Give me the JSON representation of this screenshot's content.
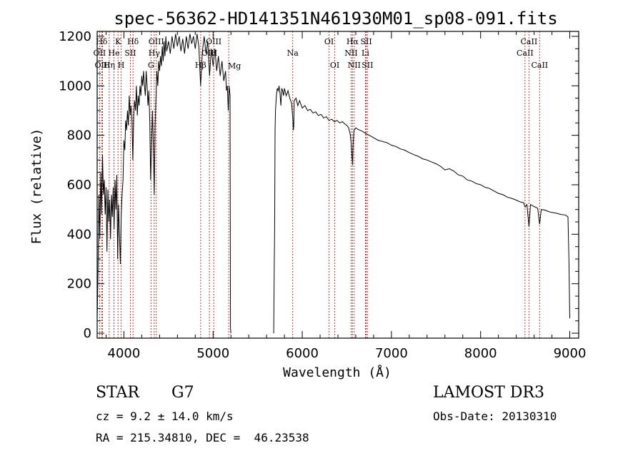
{
  "chart_data": {
    "type": "line",
    "title": "spec-56362-HD141351N461930M01_sp08-091.fits",
    "xlabel": "Wavelength (Å)",
    "ylabel": "Flux (relative)",
    "xlim": [
      3700,
      9100
    ],
    "ylim": [
      -20,
      1220
    ],
    "xticks": [
      4000,
      5000,
      6000,
      7000,
      8000,
      9000
    ],
    "yticks": [
      0,
      200,
      400,
      600,
      800,
      1000,
      1200
    ],
    "series": [
      {
        "name": "spectrum",
        "segments": [
          [
            [
              3700,
              60
            ],
            [
              3710,
              250
            ],
            [
              3720,
              560
            ],
            [
              3730,
              380
            ],
            [
              3740,
              650
            ],
            [
              3750,
              480
            ],
            [
              3760,
              720
            ],
            [
              3770,
              560
            ],
            [
              3780,
              620
            ],
            [
              3790,
              480
            ],
            [
              3800,
              590
            ],
            [
              3810,
              330
            ],
            [
              3820,
              580
            ],
            [
              3830,
              450
            ],
            [
              3840,
              540
            ],
            [
              3850,
              380
            ],
            [
              3860,
              560
            ],
            [
              3870,
              470
            ],
            [
              3880,
              590
            ],
            [
              3890,
              420
            ],
            [
              3900,
              620
            ],
            [
              3910,
              500
            ],
            [
              3920,
              640
            ],
            [
              3930,
              300
            ],
            [
              3940,
              520
            ],
            [
              3950,
              400
            ],
            [
              3960,
              280
            ],
            [
              3970,
              480
            ],
            [
              3980,
              560
            ],
            [
              3990,
              620
            ],
            [
              4000,
              780
            ],
            [
              4010,
              740
            ],
            [
              4020,
              860
            ],
            [
              4030,
              820
            ],
            [
              4040,
              900
            ],
            [
              4050,
              840
            ],
            [
              4060,
              960
            ],
            [
              4070,
              880
            ],
            [
              4080,
              920
            ],
            [
              4090,
              860
            ],
            [
              4100,
              700
            ],
            [
              4110,
              880
            ],
            [
              4120,
              940
            ],
            [
              4130,
              900
            ],
            [
              4140,
              1000
            ],
            [
              4150,
              880
            ],
            [
              4160,
              960
            ],
            [
              4170,
              920
            ],
            [
              4180,
              1000
            ],
            [
              4190,
              960
            ],
            [
              4200,
              1040
            ],
            [
              4210,
              1000
            ],
            [
              4220,
              1060
            ],
            [
              4230,
              1000
            ],
            [
              4240,
              960
            ],
            [
              4250,
              1060
            ],
            [
              4260,
              1000
            ],
            [
              4270,
              920
            ],
            [
              4280,
              980
            ],
            [
              4290,
              860
            ],
            [
              4300,
              620
            ],
            [
              4310,
              760
            ],
            [
              4320,
              900
            ],
            [
              4330,
              760
            ],
            [
              4340,
              560
            ],
            [
              4350,
              840
            ],
            [
              4360,
              960
            ],
            [
              4370,
              1060
            ],
            [
              4380,
              1000
            ],
            [
              4390,
              1100
            ],
            [
              4400,
              1060
            ],
            [
              4410,
              1120
            ],
            [
              4420,
              1080
            ],
            [
              4430,
              1160
            ],
            [
              4440,
              1100
            ],
            [
              4450,
              1180
            ],
            [
              4460,
              1120
            ],
            [
              4470,
              1200
            ],
            [
              4480,
              1140
            ],
            [
              4500,
              1180
            ],
            [
              4520,
              1130
            ],
            [
              4540,
              1200
            ],
            [
              4560,
              1150
            ],
            [
              4580,
              1210
            ],
            [
              4600,
              1160
            ],
            [
              4620,
              1200
            ],
            [
              4640,
              1140
            ],
            [
              4660,
              1190
            ],
            [
              4680,
              1130
            ],
            [
              4700,
              1200
            ],
            [
              4720,
              1150
            ],
            [
              4740,
              1210
            ],
            [
              4760,
              1170
            ],
            [
              4780,
              1200
            ],
            [
              4800,
              1150
            ],
            [
              4820,
              1210
            ],
            [
              4840,
              1160
            ],
            [
              4860,
              1000
            ],
            [
              4880,
              1140
            ],
            [
              4900,
              1200
            ],
            [
              4920,
              1130
            ],
            [
              4940,
              1180
            ],
            [
              4960,
              1040
            ],
            [
              4980,
              1150
            ],
            [
              5000,
              1080
            ],
            [
              5020,
              1150
            ],
            [
              5040,
              1060
            ],
            [
              5060,
              1120
            ],
            [
              5080,
              1040
            ],
            [
              5100,
              1100
            ],
            [
              5120,
              1020
            ],
            [
              5140,
              1060
            ],
            [
              5150,
              980
            ],
            [
              5160,
              1000
            ],
            [
              5170,
              900
            ],
            [
              5180,
              1000
            ],
            [
              5190,
              960
            ],
            [
              5195,
              20
            ],
            [
              5200,
              0
            ]
          ],
          [
            [
              5680,
              0
            ],
            [
              5685,
              250
            ],
            [
              5690,
              420
            ],
            [
              5695,
              820
            ],
            [
              5700,
              900
            ],
            [
              5710,
              960
            ],
            [
              5720,
              990
            ],
            [
              5730,
              980
            ],
            [
              5740,
              1000
            ],
            [
              5750,
              970
            ],
            [
              5760,
              920
            ],
            [
              5770,
              990
            ],
            [
              5780,
              980
            ],
            [
              5790,
              960
            ],
            [
              5800,
              990
            ],
            [
              5820,
              960
            ],
            [
              5840,
              980
            ],
            [
              5860,
              950
            ],
            [
              5880,
              930
            ],
            [
              5895,
              860
            ],
            [
              5900,
              820
            ],
            [
              5905,
              840
            ],
            [
              5910,
              940
            ],
            [
              5930,
              950
            ],
            [
              5950,
              920
            ],
            [
              5970,
              940
            ],
            [
              6000,
              910
            ],
            [
              6030,
              920
            ],
            [
              6060,
              900
            ],
            [
              6090,
              905
            ],
            [
              6120,
              890
            ],
            [
              6150,
              895
            ],
            [
              6180,
              880
            ],
            [
              6210,
              885
            ],
            [
              6240,
              870
            ],
            [
              6270,
              875
            ],
            [
              6300,
              860
            ],
            [
              6330,
              865
            ],
            [
              6360,
              855
            ],
            [
              6390,
              860
            ],
            [
              6420,
              850
            ],
            [
              6450,
              855
            ],
            [
              6480,
              845
            ],
            [
              6500,
              840
            ],
            [
              6520,
              830
            ],
            [
              6540,
              800
            ],
            [
              6550,
              760
            ],
            [
              6560,
              700
            ],
            [
              6565,
              680
            ],
            [
              6570,
              760
            ],
            [
              6580,
              820
            ],
            [
              6600,
              830
            ],
            [
              6620,
              825
            ],
            [
              6650,
              820
            ],
            [
              6680,
              815
            ],
            [
              6700,
              810
            ],
            [
              6750,
              800
            ],
            [
              6800,
              790
            ],
            [
              6850,
              780
            ],
            [
              6900,
              775
            ],
            [
              6950,
              770
            ],
            [
              7000,
              760
            ],
            [
              7050,
              755
            ],
            [
              7100,
              745
            ],
            [
              7150,
              740
            ],
            [
              7200,
              730
            ],
            [
              7250,
              722
            ],
            [
              7300,
              715
            ],
            [
              7350,
              705
            ],
            [
              7400,
              700
            ],
            [
              7450,
              692
            ],
            [
              7500,
              685
            ],
            [
              7550,
              675
            ],
            [
              7600,
              660
            ],
            [
              7650,
              665
            ],
            [
              7700,
              655
            ],
            [
              7750,
              640
            ],
            [
              7800,
              635
            ],
            [
              7850,
              620
            ],
            [
              7900,
              615
            ],
            [
              7950,
              605
            ],
            [
              8000,
              600
            ],
            [
              8050,
              590
            ],
            [
              8100,
              585
            ],
            [
              8150,
              575
            ],
            [
              8200,
              565
            ],
            [
              8250,
              560
            ],
            [
              8300,
              550
            ],
            [
              8350,
              545
            ],
            [
              8400,
              538
            ],
            [
              8450,
              530
            ],
            [
              8480,
              528
            ],
            [
              8500,
              510
            ],
            [
              8520,
              520
            ],
            [
              8542,
              430
            ],
            [
              8560,
              520
            ],
            [
              8600,
              512
            ],
            [
              8640,
              505
            ],
            [
              8662,
              440
            ],
            [
              8680,
              500
            ],
            [
              8720,
              498
            ],
            [
              8760,
              492
            ],
            [
              8800,
              488
            ],
            [
              8850,
              485
            ],
            [
              8900,
              480
            ],
            [
              8950,
              478
            ],
            [
              8980,
              470
            ],
            [
              8990,
              300
            ],
            [
              9000,
              60
            ]
          ]
        ]
      }
    ],
    "lines": [
      {
        "label": "Hδ",
        "x": 3750,
        "row": 1
      },
      {
        "label": "OII",
        "x": 3727,
        "row": 2
      },
      {
        "label": "OIII",
        "x": 3760,
        "row": 3
      },
      {
        "label": "K",
        "x": 3934,
        "row": 1
      },
      {
        "label": "He",
        "x": 3889,
        "row": 2
      },
      {
        "label": "Hη",
        "x": 3835,
        "row": 3
      },
      {
        "label": "Hδ",
        "x": 4102,
        "row": 1
      },
      {
        "label": "SII",
        "x": 4072,
        "row": 2
      },
      {
        "label": "H",
        "x": 3969,
        "row": 3
      },
      {
        "label": "OIII",
        "x": 4363,
        "row": 1
      },
      {
        "label": "Hγ",
        "x": 4340,
        "row": 2
      },
      {
        "label": "G",
        "x": 4304,
        "row": 3
      },
      {
        "label": "OIII",
        "x": 5007,
        "row": 1
      },
      {
        "label": "OIII",
        "x": 4959,
        "row": 2
      },
      {
        "label": "Hβ",
        "x": 4861,
        "row": 3
      },
      {
        "label": "Mg",
        "x": 5175,
        "row": 4
      },
      {
        "label": "Na",
        "x": 5893,
        "row": 2
      },
      {
        "label": "OI",
        "x": 6300,
        "row": 1
      },
      {
        "label": "OI",
        "x": 6364,
        "row": 3
      },
      {
        "label": "Hα",
        "x": 6563,
        "row": 1
      },
      {
        "label": "SII",
        "x": 6717,
        "row": 1
      },
      {
        "label": "NII",
        "x": 6548,
        "row": 2
      },
      {
        "label": "Li",
        "x": 6708,
        "row": 2
      },
      {
        "label": "NII",
        "x": 6583,
        "row": 3
      },
      {
        "label": "SII",
        "x": 6731,
        "row": 3
      },
      {
        "label": "CaII",
        "x": 8542,
        "row": 1
      },
      {
        "label": "CaII",
        "x": 8498,
        "row": 2
      },
      {
        "label": "CaII",
        "x": 8662,
        "row": 3
      }
    ]
  },
  "info": {
    "class": "STAR",
    "subclass": "G7",
    "survey": "LAMOST DR3",
    "cz": "cz = 9.2 ± 14.0 km/s",
    "obs_date": "Obs-Date: 20130310",
    "radec": "RA = 215.34810, DEC =  46.23538"
  },
  "colors": {
    "line_marker": "#b22222",
    "spectrum": "#000000"
  }
}
